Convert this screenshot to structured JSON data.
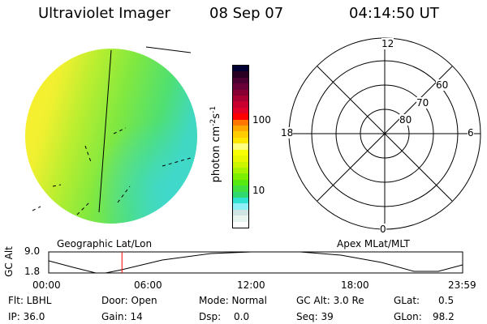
{
  "header": {
    "instrument": "Ultraviolet Imager",
    "date": "08 Sep 07",
    "time": "04:14:50 UT"
  },
  "colorbar": {
    "label": "photon cm",
    "exp1": "-2",
    "s": "s",
    "exp2": "-1",
    "ticks": [
      "100",
      "10"
    ],
    "colors": [
      "#000033",
      "#2a0022",
      "#4a0030",
      "#6a0038",
      "#880033",
      "#a80030",
      "#c80030",
      "#e00028",
      "#ff0000",
      "#ff7700",
      "#ffa800",
      "#ffcc00",
      "#ffe600",
      "#ffff80",
      "#f8ff00",
      "#e8f800",
      "#ccf600",
      "#a8f400",
      "#7cf000",
      "#58ea10",
      "#40e040",
      "#30d870",
      "#30e0d0",
      "#90f0f8",
      "#d0e4e4",
      "#e8f4ee",
      "#ffffff"
    ]
  },
  "image": {
    "label": "Geographic Lat/Lon"
  },
  "polar": {
    "label": "Apex MLat/MLT",
    "mlt": [
      "12",
      "18",
      "6",
      "0"
    ],
    "mlat": [
      "60",
      "70",
      "80"
    ]
  },
  "altplot": {
    "ylabel": "GC Alt",
    "yticks": [
      "9.0",
      "1.8"
    ],
    "xticks": [
      "00:00",
      "06:00",
      "12:00",
      "18:00",
      "23:59"
    ],
    "current_time_fraction": 0.177
  },
  "status": {
    "flt": "Flt: LBHL",
    "door": "Door: Open",
    "mode": "Mode: Normal",
    "gcalt": "GC Alt: 3.0 Re",
    "glat_label": "GLat:",
    "glat": "0.5",
    "ip": "IP: 36.0",
    "gain": "Gain: 14",
    "dsp_label": "Dsp:",
    "dsp": "0.0",
    "seq": "Seq: 39",
    "glon_label": "GLon:",
    "glon": "98.2"
  }
}
